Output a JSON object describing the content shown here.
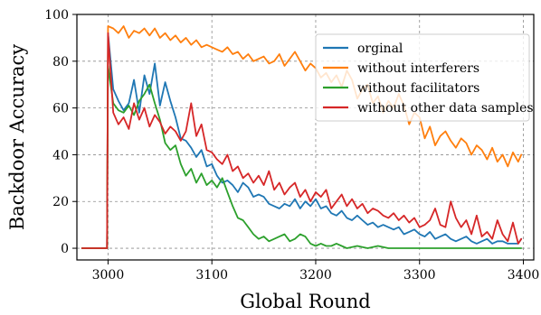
{
  "chart_data": {
    "type": "line",
    "xlabel": "Global Round",
    "ylabel": "Backdoor Accuracy",
    "xlim": [
      2970,
      3410
    ],
    "ylim": [
      -5,
      100
    ],
    "xticks": [
      3000,
      3100,
      3200,
      3300,
      3400
    ],
    "yticks": [
      0,
      20,
      40,
      60,
      80,
      100
    ],
    "grid": true,
    "legend_position": "upper right",
    "series": [
      {
        "name": "orginal",
        "color": "#1f77b4",
        "x": [
          2975,
          2995,
          2999,
          3000,
          3005,
          3010,
          3015,
          3020,
          3025,
          3030,
          3035,
          3040,
          3045,
          3050,
          3055,
          3060,
          3065,
          3070,
          3075,
          3080,
          3085,
          3090,
          3095,
          3100,
          3105,
          3110,
          3115,
          3120,
          3125,
          3130,
          3135,
          3140,
          3145,
          3150,
          3155,
          3160,
          3165,
          3170,
          3175,
          3180,
          3185,
          3190,
          3195,
          3200,
          3205,
          3210,
          3215,
          3220,
          3225,
          3230,
          3235,
          3240,
          3245,
          3250,
          3255,
          3260,
          3265,
          3270,
          3275,
          3280,
          3285,
          3290,
          3295,
          3300,
          3305,
          3310,
          3315,
          3320,
          3325,
          3330,
          3335,
          3340,
          3345,
          3350,
          3355,
          3360,
          3365,
          3370,
          3375,
          3380,
          3385,
          3390,
          3395,
          3398
        ],
        "y": [
          0,
          0,
          0,
          92,
          68,
          63,
          59,
          62,
          72,
          58,
          74,
          66,
          79,
          61,
          71,
          63,
          56,
          47,
          46,
          43,
          39,
          42,
          35,
          36,
          31,
          28,
          29,
          27,
          24,
          28,
          26,
          22,
          23,
          22,
          19,
          18,
          17,
          19,
          18,
          21,
          17,
          20,
          18,
          21,
          17,
          18,
          15,
          14,
          16,
          13,
          12,
          14,
          12,
          10,
          11,
          9,
          10,
          9,
          8,
          9,
          6,
          7,
          8,
          6,
          5,
          7,
          4,
          5,
          6,
          4,
          3,
          4,
          5,
          3,
          2,
          3,
          4,
          2,
          3,
          3,
          2,
          2,
          2,
          4
        ]
      },
      {
        "name": "without interferers",
        "color": "#ff7f0e",
        "x": [
          2975,
          2995,
          2999,
          3000,
          3005,
          3010,
          3015,
          3020,
          3025,
          3030,
          3035,
          3040,
          3045,
          3050,
          3055,
          3060,
          3065,
          3070,
          3075,
          3080,
          3085,
          3090,
          3095,
          3100,
          3105,
          3110,
          3115,
          3120,
          3125,
          3130,
          3135,
          3140,
          3145,
          3150,
          3155,
          3160,
          3165,
          3170,
          3175,
          3180,
          3185,
          3190,
          3195,
          3200,
          3205,
          3210,
          3215,
          3220,
          3225,
          3230,
          3235,
          3240,
          3245,
          3250,
          3255,
          3260,
          3265,
          3270,
          3275,
          3280,
          3285,
          3290,
          3295,
          3300,
          3305,
          3310,
          3315,
          3320,
          3325,
          3330,
          3335,
          3340,
          3345,
          3350,
          3355,
          3360,
          3365,
          3370,
          3375,
          3380,
          3385,
          3390,
          3395,
          3398
        ],
        "y": [
          0,
          0,
          0,
          95,
          94,
          92,
          95,
          90,
          93,
          92,
          94,
          91,
          94,
          90,
          92,
          89,
          91,
          88,
          90,
          87,
          89,
          86,
          87,
          86,
          85,
          84,
          86,
          83,
          84,
          81,
          83,
          80,
          81,
          82,
          79,
          80,
          83,
          78,
          81,
          84,
          80,
          76,
          79,
          77,
          73,
          75,
          71,
          74,
          69,
          76,
          72,
          64,
          68,
          70,
          62,
          65,
          58,
          63,
          60,
          66,
          61,
          53,
          58,
          56,
          47,
          52,
          44,
          48,
          50,
          46,
          43,
          47,
          45,
          40,
          44,
          42,
          38,
          43,
          37,
          40,
          35,
          41,
          37,
          40
        ]
      },
      {
        "name": "without facilitators",
        "color": "#2ca02c",
        "x": [
          2975,
          2995,
          2999,
          3000,
          3005,
          3010,
          3015,
          3020,
          3025,
          3030,
          3035,
          3040,
          3045,
          3050,
          3055,
          3060,
          3065,
          3070,
          3075,
          3080,
          3085,
          3090,
          3095,
          3100,
          3105,
          3110,
          3115,
          3120,
          3125,
          3130,
          3135,
          3140,
          3145,
          3150,
          3155,
          3160,
          3165,
          3170,
          3175,
          3180,
          3185,
          3190,
          3195,
          3200,
          3205,
          3210,
          3215,
          3220,
          3225,
          3230,
          3240,
          3250,
          3260,
          3270,
          3280,
          3290,
          3300,
          3320,
          3340,
          3360,
          3380,
          3398
        ],
        "y": [
          0,
          0,
          0,
          78,
          62,
          59,
          58,
          61,
          57,
          63,
          66,
          70,
          62,
          55,
          45,
          42,
          44,
          36,
          31,
          34,
          28,
          32,
          27,
          29,
          26,
          30,
          24,
          18,
          13,
          12,
          9,
          6,
          4,
          5,
          3,
          4,
          5,
          6,
          3,
          4,
          6,
          5,
          2,
          1,
          2,
          1,
          1,
          2,
          1,
          0,
          1,
          0,
          1,
          0,
          0,
          0,
          0,
          0,
          0,
          0,
          0,
          0
        ]
      },
      {
        "name": "without other data samples",
        "color": "#d62728",
        "x": [
          2975,
          2995,
          2999,
          3000,
          3005,
          3010,
          3015,
          3020,
          3025,
          3030,
          3035,
          3040,
          3045,
          3050,
          3055,
          3060,
          3065,
          3070,
          3075,
          3080,
          3085,
          3090,
          3095,
          3100,
          3105,
          3110,
          3115,
          3120,
          3125,
          3130,
          3135,
          3140,
          3145,
          3150,
          3155,
          3160,
          3165,
          3170,
          3175,
          3180,
          3185,
          3190,
          3195,
          3200,
          3205,
          3210,
          3215,
          3220,
          3225,
          3230,
          3235,
          3240,
          3245,
          3250,
          3255,
          3260,
          3265,
          3270,
          3275,
          3280,
          3285,
          3290,
          3295,
          3300,
          3305,
          3310,
          3315,
          3320,
          3325,
          3330,
          3335,
          3340,
          3345,
          3350,
          3355,
          3360,
          3365,
          3370,
          3375,
          3380,
          3385,
          3390,
          3395,
          3398
        ],
        "y": [
          0,
          0,
          0,
          92,
          58,
          53,
          56,
          51,
          62,
          55,
          60,
          52,
          57,
          54,
          49,
          52,
          50,
          46,
          50,
          62,
          48,
          53,
          42,
          41,
          38,
          36,
          40,
          33,
          35,
          30,
          32,
          28,
          31,
          27,
          33,
          25,
          28,
          23,
          26,
          28,
          22,
          25,
          20,
          24,
          22,
          25,
          17,
          20,
          23,
          18,
          21,
          17,
          19,
          15,
          17,
          16,
          14,
          13,
          15,
          12,
          14,
          11,
          13,
          9,
          10,
          12,
          17,
          10,
          9,
          20,
          13,
          9,
          12,
          6,
          14,
          5,
          7,
          4,
          12,
          6,
          3,
          11,
          2,
          4
        ]
      }
    ]
  }
}
